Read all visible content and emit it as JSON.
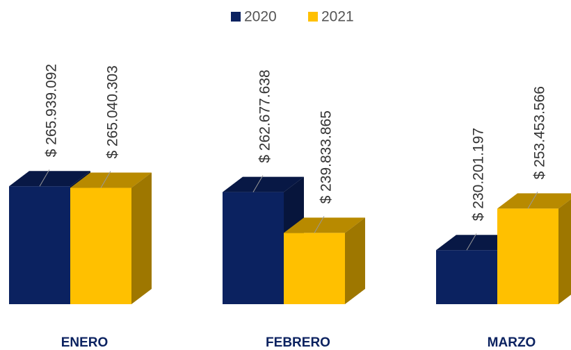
{
  "chart_data": {
    "type": "bar3d",
    "categories": [
      "ENERO",
      "FEBRERO",
      "MARZO"
    ],
    "series": [
      {
        "name": "2020",
        "color": "#0b2260",
        "values": [
          265939092,
          262677638,
          230201197
        ],
        "value_labels": [
          "$ 265.939.092",
          "$ 262.677.638",
          "$ 230.201.197"
        ]
      },
      {
        "name": "2021",
        "color": "#ffc000",
        "values": [
          265040303,
          239833865,
          253453566
        ],
        "value_labels": [
          "$ 265.040.303",
          "$ 239.833.865",
          "$ 253.453.566"
        ]
      }
    ],
    "ylim": [
      200000000,
      280000000
    ],
    "legend": "top"
  }
}
